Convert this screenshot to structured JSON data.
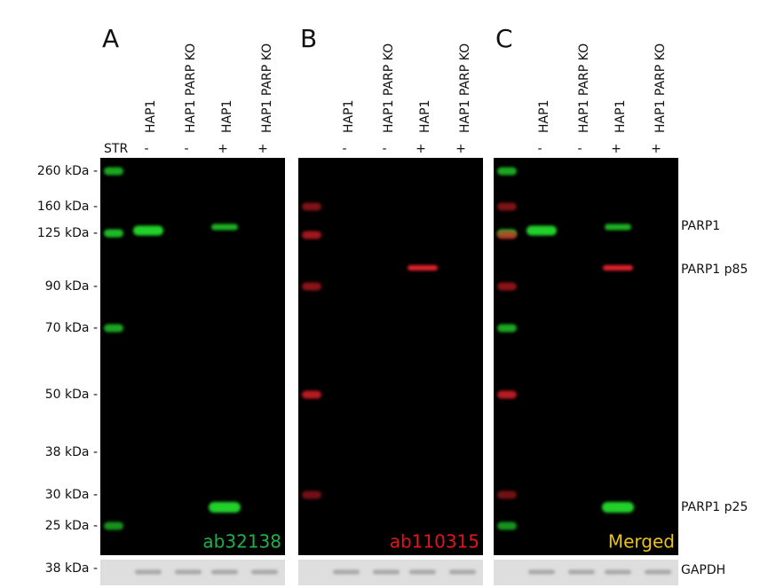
{
  "strain_label": "STR",
  "panels": [
    {
      "letter": "A",
      "antibody": "ab32138",
      "lanes": [
        {
          "label": "HAP1",
          "treatment": "-"
        },
        {
          "label": "HAP1 PARP KO",
          "treatment": "-"
        },
        {
          "label": "HAP1",
          "treatment": "+"
        },
        {
          "label": "HAP1 PARP KO",
          "treatment": "+"
        }
      ]
    },
    {
      "letter": "B",
      "antibody": "ab110315",
      "lanes": [
        {
          "label": "HAP1",
          "treatment": "-"
        },
        {
          "label": "HAP1 PARP KO",
          "treatment": "-"
        },
        {
          "label": "HAP1",
          "treatment": "+"
        },
        {
          "label": "HAP1 PARP KO",
          "treatment": "+"
        }
      ]
    },
    {
      "letter": "C",
      "antibody": "Merged",
      "lanes": [
        {
          "label": "HAP1",
          "treatment": "-"
        },
        {
          "label": "HAP1 PARP KO",
          "treatment": "-"
        },
        {
          "label": "HAP1",
          "treatment": "+"
        },
        {
          "label": "HAP1 PARP KO",
          "treatment": "+"
        }
      ]
    }
  ],
  "markers": [
    "260 kDa -",
    "160 kDa -",
    "125 kDa -",
    "90 kDa -",
    "70 kDa -",
    "50 kDa -",
    "38 kDa -",
    "30 kDa -",
    "25 kDa -"
  ],
  "loading_marker": "38 kDa -",
  "band_labels": [
    "PARP1",
    "PARP1 p85",
    "PARP1 p25"
  ],
  "loading_label": "GAPDH"
}
